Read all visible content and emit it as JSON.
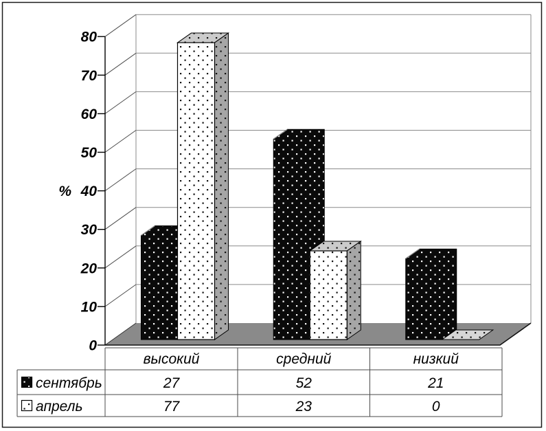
{
  "figure": {
    "background": "#ffffff",
    "border_color": "#1a1a1a"
  },
  "chart_data": {
    "type": "bar",
    "projection": "3d-column",
    "title": "",
    "categories": [
      "высокий",
      "средний",
      "низкий"
    ],
    "series": [
      {
        "name": "сентябрь",
        "values": [
          27,
          52,
          21
        ],
        "color": "#0a0a0a",
        "pattern": "white-dots-on-black"
      },
      {
        "name": "апрель",
        "values": [
          77,
          23,
          0
        ],
        "color": "#ffffff",
        "pattern": "black-dots-on-white"
      }
    ],
    "ylabel": "%",
    "ylim": [
      0,
      80
    ],
    "ytick_step": 10,
    "yticks": [
      0,
      10,
      20,
      30,
      40,
      50,
      60,
      70,
      80
    ],
    "grid": true,
    "data_table": true,
    "legend_position": "data-table-left",
    "floor_color": "#8a8a8a",
    "wall_color": "#ffffff",
    "gridline_color": "#8a8a8a",
    "diagonal_gridline_color": "#4d4d4d",
    "table_line_color": "#4a4a4a"
  }
}
